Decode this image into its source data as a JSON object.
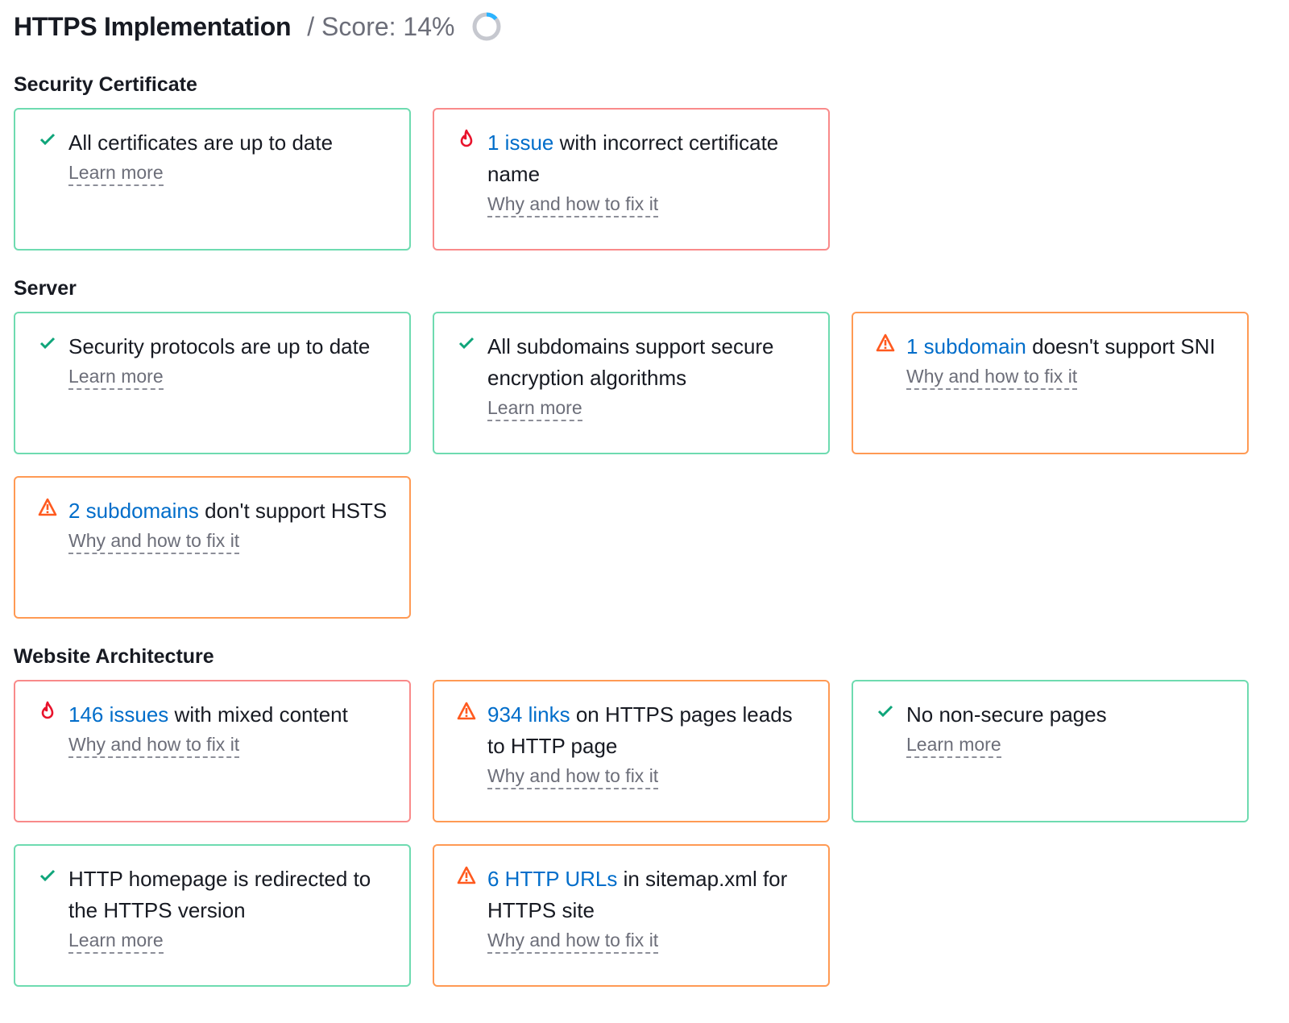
{
  "header": {
    "title": "HTTPS Implementation",
    "score_label": "/ Score: 14%",
    "score_percent": 14
  },
  "colors": {
    "ok": "#0fa57a",
    "error": "#e8132c",
    "warning": "#ff5a1f",
    "link": "#006dca",
    "donut_fill": "#2bb3ff",
    "donut_track": "#c6c8cf"
  },
  "sections": [
    {
      "title": "Security Certificate",
      "cards": [
        {
          "status": "ok",
          "link": "",
          "text": "All certificates are up to date",
          "action": "Learn more"
        },
        {
          "status": "error",
          "link": "1 issue",
          "text": " with incorrect certificate name",
          "action": "Why and how to fix it"
        }
      ]
    },
    {
      "title": "Server",
      "cards": [
        {
          "status": "ok",
          "link": "",
          "text": "Security protocols are up to date",
          "action": "Learn more"
        },
        {
          "status": "ok",
          "link": "",
          "text": "All subdomains support secure encryption algorithms",
          "action": "Learn more"
        },
        {
          "status": "warning",
          "link": "1 subdomain",
          "text": " doesn't support SNI",
          "action": "Why and how to fix it"
        },
        {
          "status": "warning",
          "link": "2 subdomains",
          "text": " don't support HSTS",
          "action": "Why and how to fix it"
        }
      ]
    },
    {
      "title": "Website Architecture",
      "cards": [
        {
          "status": "error",
          "link": "146 issues",
          "text": " with mixed content",
          "action": "Why and how to fix it"
        },
        {
          "status": "warning",
          "link": "934 links",
          "text": " on HTTPS pages leads to HTTP page",
          "action": "Why and how to fix it"
        },
        {
          "status": "ok",
          "link": "",
          "text": "No non-secure pages",
          "action": "Learn more"
        },
        {
          "status": "ok",
          "link": "",
          "text": "HTTP homepage is redirected to the HTTPS version",
          "action": "Learn more"
        },
        {
          "status": "warning",
          "link": "6 HTTP URLs",
          "text": " in sitemap.xml for HTTPS site",
          "action": "Why and how to fix it"
        }
      ]
    }
  ]
}
